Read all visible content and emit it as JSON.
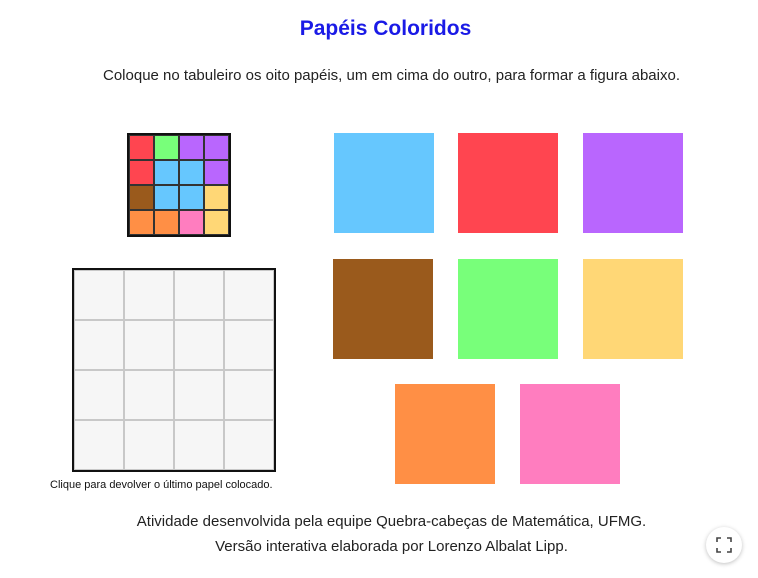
{
  "title": "Papéis Coloridos",
  "instructions": "Coloque no tabuleiro os oito papéis, um em cima do outro, para formar a figura abaixo.",
  "colors": {
    "blue": "#66c7fe",
    "red": "#ff4550",
    "purple": "#b966fe",
    "brown": "#9a5a1c",
    "green": "#78ff7a",
    "yellow": "#ffd776",
    "orange": "#ff8f45",
    "pink": "#ff7dbf"
  },
  "target_grid": [
    [
      "red",
      "green",
      "purple",
      "purple"
    ],
    [
      "red",
      "blue",
      "blue",
      "purple"
    ],
    [
      "brown",
      "blue",
      "blue",
      "yellow"
    ],
    [
      "orange",
      "orange",
      "pink",
      "yellow"
    ]
  ],
  "papers": [
    "blue",
    "red",
    "purple",
    "brown",
    "green",
    "yellow",
    "orange",
    "pink"
  ],
  "undo_hint": "Clique para devolver o último papel colocado.",
  "credits": {
    "line1": "Atividade desenvolvida pela equipe Quebra-cabeças de Matemática, UFMG.",
    "line2": "Versão interativa elaborada por Lorenzo Albalat Lipp."
  },
  "fullscreen_icon": "fullscreen-icon"
}
